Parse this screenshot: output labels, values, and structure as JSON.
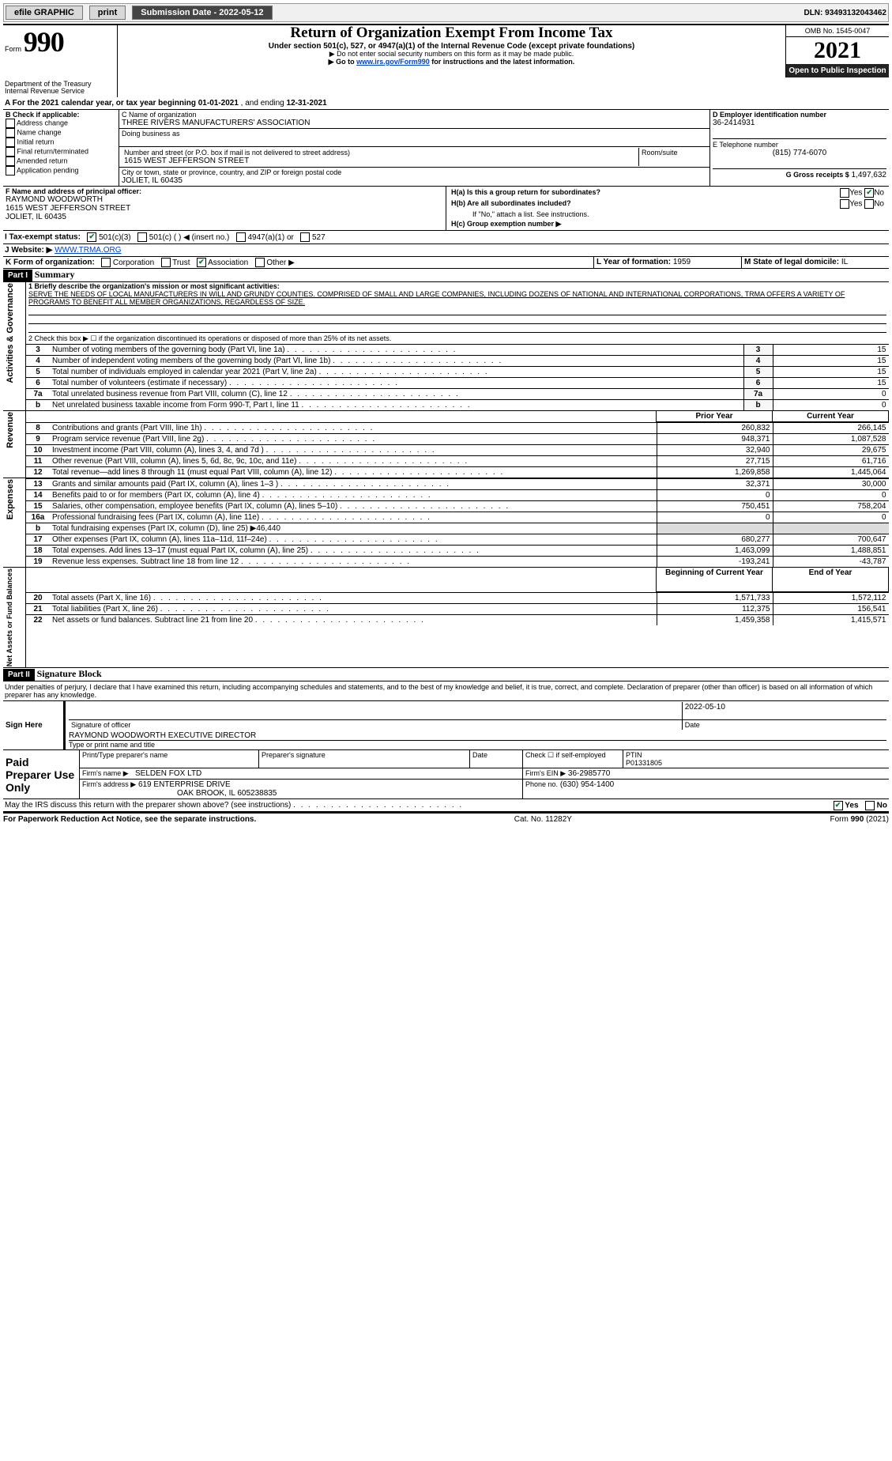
{
  "topbar": {
    "efile": "efile GRAPHIC",
    "print": "print",
    "sub_label": "Submission Date - 2022-05-12",
    "dln": "DLN: 93493132043462"
  },
  "form": {
    "form_word": "Form",
    "form_no": "990",
    "title": "Return of Organization Exempt From Income Tax",
    "subtitle": "Under section 501(c), 527, or 4947(a)(1) of the Internal Revenue Code (except private foundations)",
    "ssn_note": "▶ Do not enter social security numbers on this form as it may be made public.",
    "goto_prefix": "▶ Go to ",
    "goto_link": "www.irs.gov/Form990",
    "goto_suffix": " for instructions and the latest information.",
    "dept": "Department of the Treasury",
    "irs": "Internal Revenue Service",
    "omb": "OMB No. 1545-0047",
    "year": "2021",
    "open": "Open to Public Inspection"
  },
  "period": {
    "label_a": "A For the 2021 calendar year, or tax year beginning",
    "begin": "01-01-2021",
    "mid": ", and ending",
    "end": "12-31-2021"
  },
  "boxB": {
    "title": "B Check if applicable:",
    "items": [
      "Address change",
      "Name change",
      "Initial return",
      "Final return/terminated",
      "Amended return",
      "Application pending"
    ]
  },
  "boxC": {
    "label": "C Name of organization",
    "name": "THREE RIVERS MANUFACTURERS' ASSOCIATION",
    "dba_label": "Doing business as",
    "street_label": "Number and street (or P.O. box if mail is not delivered to street address)",
    "room_label": "Room/suite",
    "street": "1615 WEST JEFFERSON STREET",
    "city_label": "City or town, state or province, country, and ZIP or foreign postal code",
    "city": "JOLIET, IL  60435"
  },
  "boxD": {
    "label": "D Employer identification number",
    "value": "36-2414931"
  },
  "boxE": {
    "label": "E Telephone number",
    "value": "(815) 774-6070"
  },
  "boxG": {
    "label": "G Gross receipts $",
    "value": "1,497,632"
  },
  "boxF": {
    "label": "F  Name and address of principal officer:",
    "name": "RAYMOND WOODWORTH",
    "street": "1615 WEST JEFFERSON STREET",
    "city": "JOLIET, IL  60435"
  },
  "boxH": {
    "a_label": "H(a)  Is this a group return for subordinates?",
    "b_label": "H(b)  Are all subordinates included?",
    "b_note": "If \"No,\" attach a list. See instructions.",
    "c_label": "H(c)  Group exemption number ▶",
    "yes": "Yes",
    "no": "No"
  },
  "boxI": {
    "label": "I  Tax-exempt status:",
    "opts": [
      "501(c)(3)",
      "501(c) (  ) ◀ (insert no.)",
      "4947(a)(1) or",
      "527"
    ]
  },
  "boxJ": {
    "label": "J  Website: ▶",
    "value": "WWW.TRMA.ORG"
  },
  "boxK": {
    "label": "K Form of organization:",
    "opts": [
      "Corporation",
      "Trust",
      "Association",
      "Other ▶"
    ],
    "checked": 2
  },
  "boxL": {
    "label": "L Year of formation:",
    "value": "1959"
  },
  "boxM": {
    "label": "M State of legal domicile:",
    "value": "IL"
  },
  "part1": {
    "hdr": "Part I",
    "title": "Summary",
    "mission_label": "1  Briefly describe the organization's mission or most significant activities:",
    "mission": "SERVE THE NEEDS OF LOCAL MANUFACTURERS IN WILL AND GRUNDY COUNTIES. COMPRISED OF SMALL AND LARGE COMPANIES, INCLUDING DOZENS OF NATIONAL AND INTERNATIONAL CORPORATIONS, TRMA OFFERS A VARIETY OF PROGRAMS TO BENEFIT ALL MEMBER ORGANIZATIONS, REGARDLESS OF SIZE.",
    "line2": "2  Check this box ▶ ☐ if the organization discontinued its operations or disposed of more than 25% of its net assets.",
    "governance_side": "Activities & Governance",
    "revenue_side": "Revenue",
    "expenses_side": "Expenses",
    "netassets_side": "Net Assets or Fund Balances",
    "lines_gov": [
      {
        "n": "3",
        "d": "Number of voting members of the governing body (Part VI, line 1a)",
        "v": "15"
      },
      {
        "n": "4",
        "d": "Number of independent voting members of the governing body (Part VI, line 1b)",
        "v": "15"
      },
      {
        "n": "5",
        "d": "Total number of individuals employed in calendar year 2021 (Part V, line 2a)",
        "v": "15"
      },
      {
        "n": "6",
        "d": "Total number of volunteers (estimate if necessary)",
        "v": "15"
      },
      {
        "n": "7a",
        "d": "Total unrelated business revenue from Part VIII, column (C), line 12",
        "v": "0"
      },
      {
        "n": "b",
        "d": "Net unrelated business taxable income from Form 990-T, Part I, line 11",
        "v": "0"
      }
    ],
    "prior_hdr": "Prior Year",
    "current_hdr": "Current Year",
    "lines_rev": [
      {
        "n": "8",
        "d": "Contributions and grants (Part VIII, line 1h)",
        "p": "260,832",
        "c": "266,145"
      },
      {
        "n": "9",
        "d": "Program service revenue (Part VIII, line 2g)",
        "p": "948,371",
        "c": "1,087,528"
      },
      {
        "n": "10",
        "d": "Investment income (Part VIII, column (A), lines 3, 4, and 7d )",
        "p": "32,940",
        "c": "29,675"
      },
      {
        "n": "11",
        "d": "Other revenue (Part VIII, column (A), lines 5, 6d, 8c, 9c, 10c, and 11e)",
        "p": "27,715",
        "c": "61,716"
      },
      {
        "n": "12",
        "d": "Total revenue—add lines 8 through 11 (must equal Part VIII, column (A), line 12)",
        "p": "1,269,858",
        "c": "1,445,064"
      }
    ],
    "lines_exp": [
      {
        "n": "13",
        "d": "Grants and similar amounts paid (Part IX, column (A), lines 1–3 )",
        "p": "32,371",
        "c": "30,000"
      },
      {
        "n": "14",
        "d": "Benefits paid to or for members (Part IX, column (A), line 4)",
        "p": "0",
        "c": "0"
      },
      {
        "n": "15",
        "d": "Salaries, other compensation, employee benefits (Part IX, column (A), lines 5–10)",
        "p": "750,451",
        "c": "758,204"
      },
      {
        "n": "16a",
        "d": "Professional fundraising fees (Part IX, column (A), line 11e)",
        "p": "0",
        "c": "0"
      },
      {
        "n": "b",
        "d": "Total fundraising expenses (Part IX, column (D), line 25) ▶46,440",
        "p": "",
        "c": "",
        "shade": true
      },
      {
        "n": "17",
        "d": "Other expenses (Part IX, column (A), lines 11a–11d, 11f–24e)",
        "p": "680,277",
        "c": "700,647"
      },
      {
        "n": "18",
        "d": "Total expenses. Add lines 13–17 (must equal Part IX, column (A), line 25)",
        "p": "1,463,099",
        "c": "1,488,851"
      },
      {
        "n": "19",
        "d": "Revenue less expenses. Subtract line 18 from line 12",
        "p": "-193,241",
        "c": "-43,787"
      }
    ],
    "beg_hdr": "Beginning of Current Year",
    "end_hdr": "End of Year",
    "lines_net": [
      {
        "n": "20",
        "d": "Total assets (Part X, line 16)",
        "p": "1,571,733",
        "c": "1,572,112"
      },
      {
        "n": "21",
        "d": "Total liabilities (Part X, line 26)",
        "p": "112,375",
        "c": "156,541"
      },
      {
        "n": "22",
        "d": "Net assets or fund balances. Subtract line 21 from line 20",
        "p": "1,459,358",
        "c": "1,415,571"
      }
    ]
  },
  "part2": {
    "hdr": "Part II",
    "title": "Signature Block",
    "penalty": "Under penalties of perjury, I declare that I have examined this return, including accompanying schedules and statements, and to the best of my knowledge and belief, it is true, correct, and complete. Declaration of preparer (other than officer) is based on all information of which preparer has any knowledge.",
    "sign_here": "Sign Here",
    "sig_officer": "Signature of officer",
    "date": "Date",
    "sig_date": "2022-05-10",
    "officer_name": "RAYMOND WOODWORTH  EXECUTIVE DIRECTOR",
    "name_title": "Type or print name and title",
    "paid_prep": "Paid Preparer Use Only",
    "pp_name_lbl": "Print/Type preparer's name",
    "pp_sig_lbl": "Preparer's signature",
    "pp_date_lbl": "Date",
    "pp_self": "Check ☐ if self-employed",
    "ptin_lbl": "PTIN",
    "ptin": "P01331805",
    "firm_name_lbl": "Firm's name  ▶",
    "firm_name": "SELDEN FOX LTD",
    "firm_ein_lbl": "Firm's EIN ▶",
    "firm_ein": "36-2985770",
    "firm_addr_lbl": "Firm's address ▶",
    "firm_addr1": "619 ENTERPRISE DRIVE",
    "firm_addr2": "OAK BROOK, IL  605238835",
    "phone_lbl": "Phone no.",
    "phone": "(630) 954-1400",
    "discuss": "May the IRS discuss this return with the preparer shown above? (see instructions)",
    "discuss_yes": "Yes",
    "discuss_no": "No"
  },
  "footer": {
    "pra": "For Paperwork Reduction Act Notice, see the separate instructions.",
    "cat": "Cat. No. 11282Y",
    "form": "Form 990 (2021)"
  }
}
